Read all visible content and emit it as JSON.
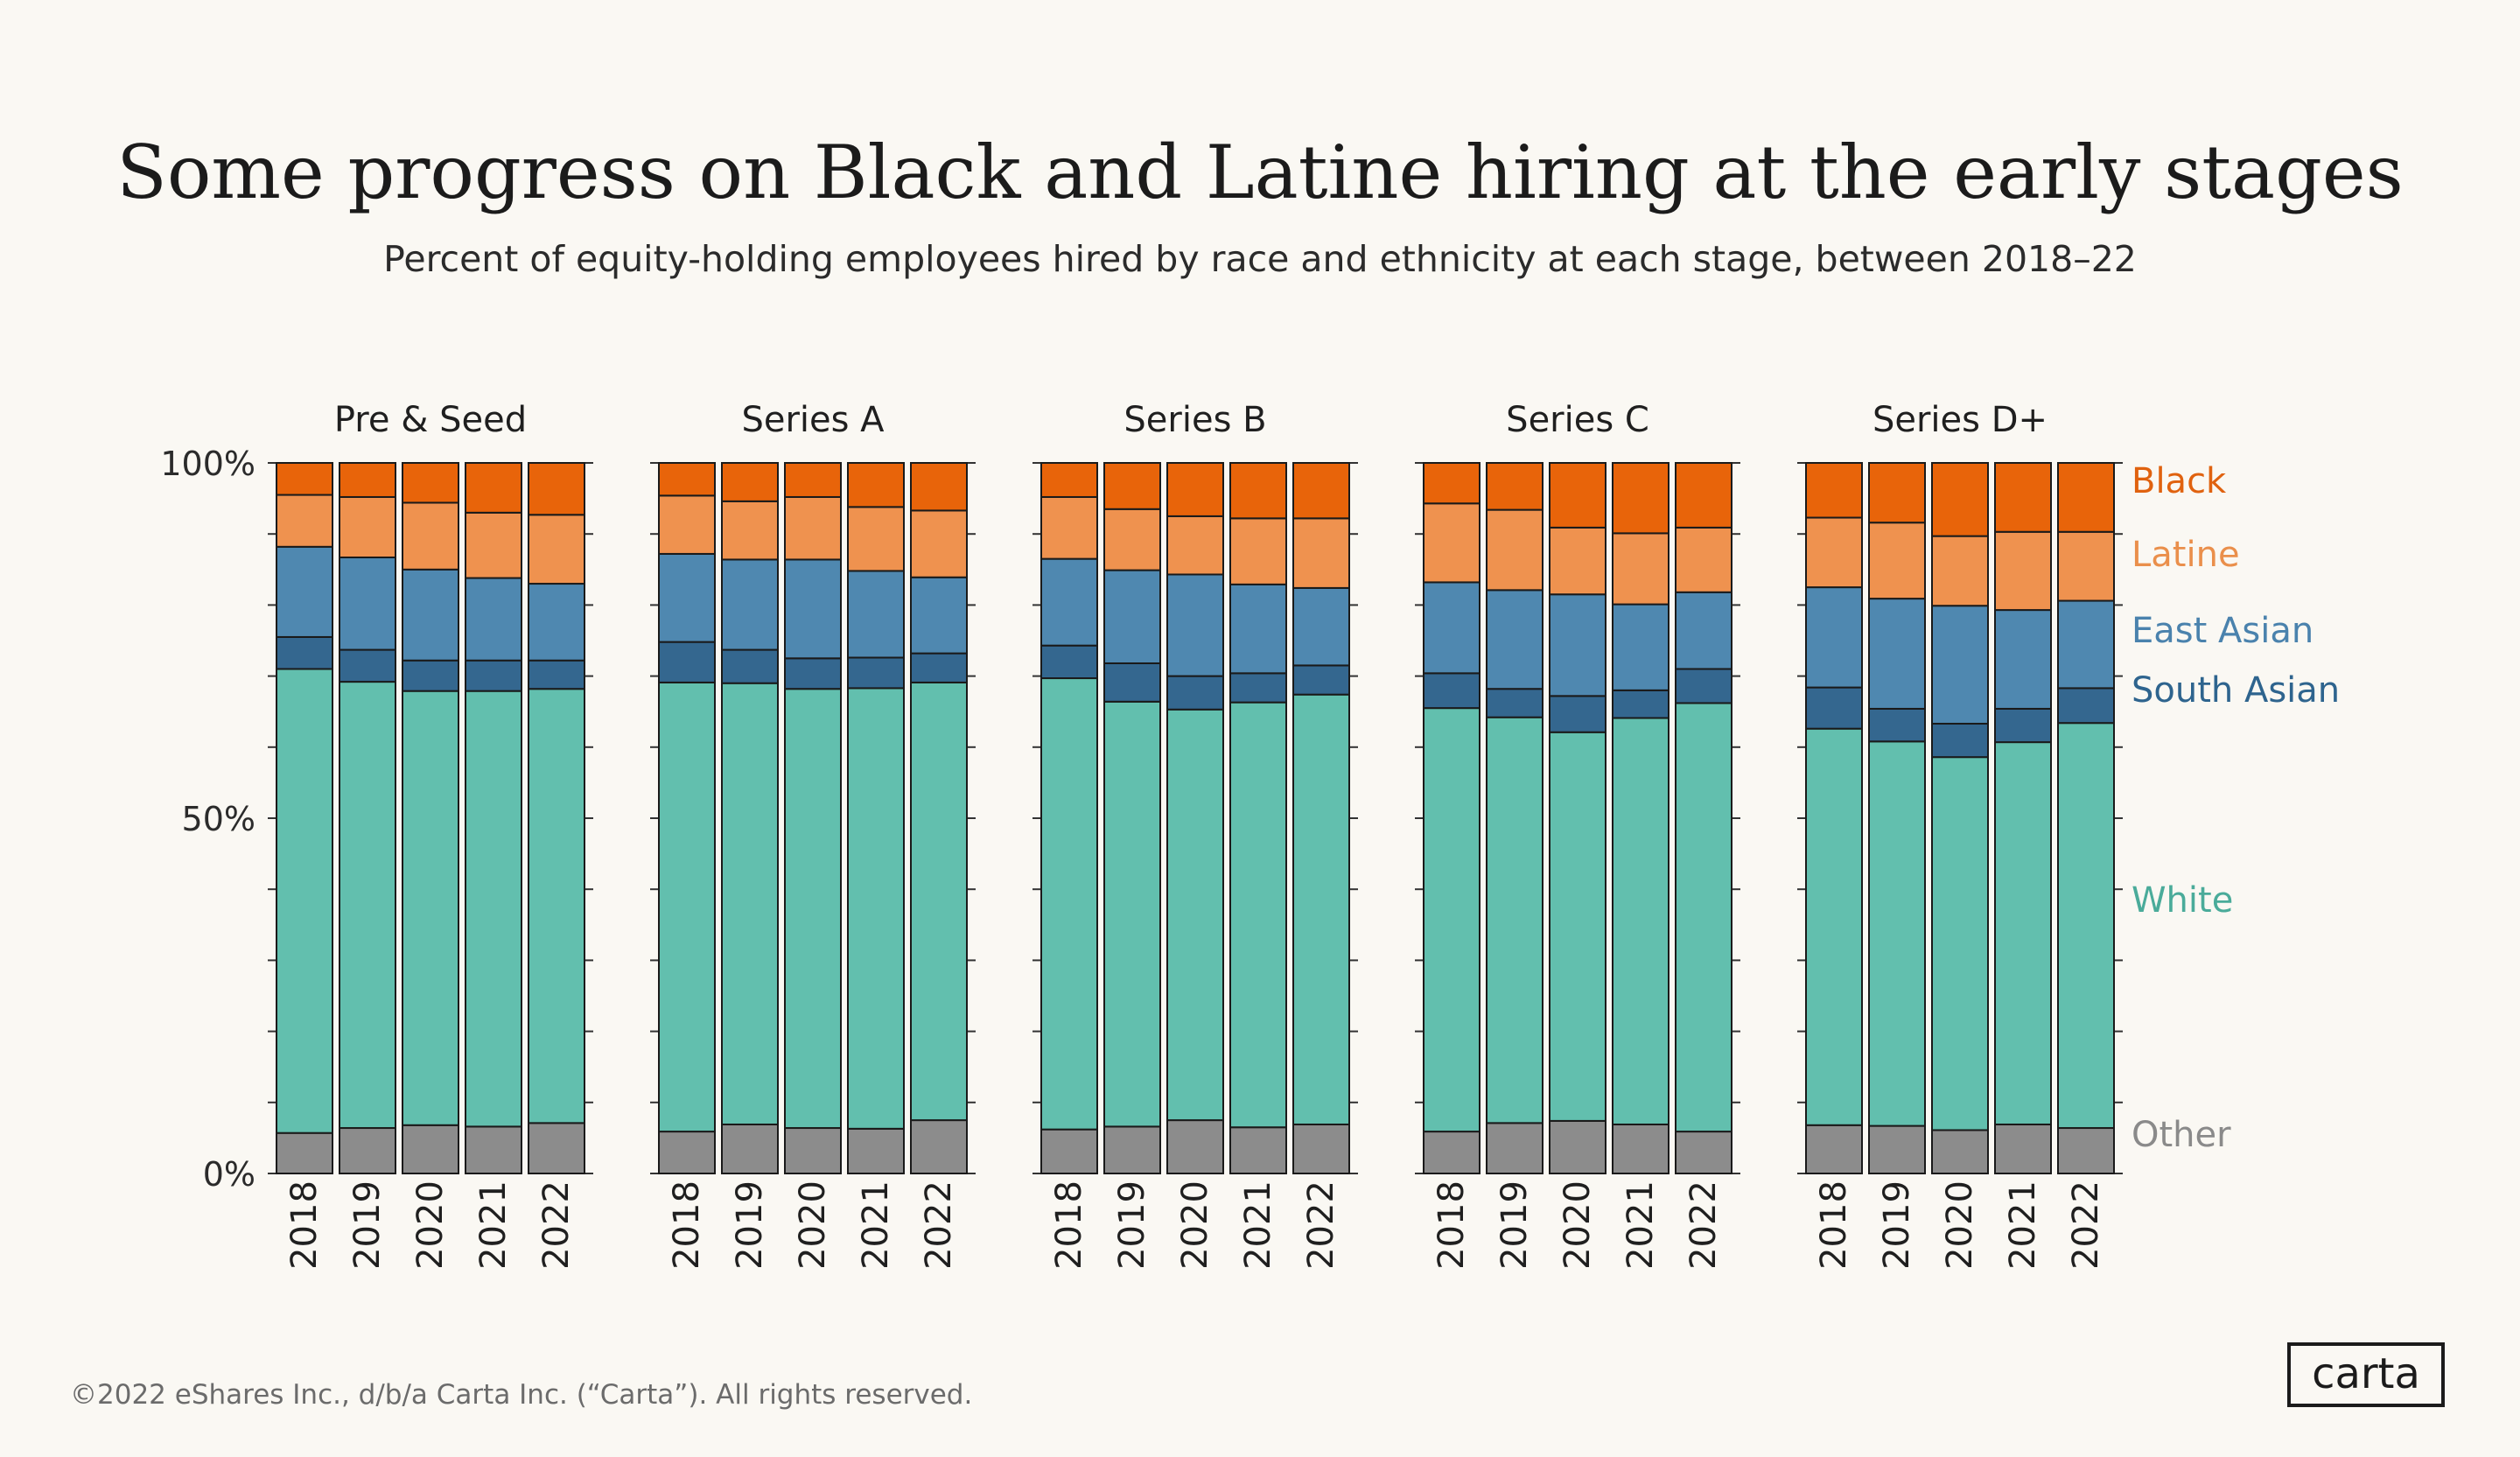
{
  "title": "Some progress on Black and Latine hiring at the early stages",
  "subtitle": "Percent of equity-holding employees hired by race and ethnicity at each stage, between 2018–22",
  "footer": "©2022 eShares Inc., d/b/a Carta Inc. (“Carta”). All rights reserved.",
  "logo_text": "carta",
  "colors": {
    "Other": "#8c8c8c",
    "White": "#62bfae",
    "South Asian": "#34678f",
    "East Asian": "#4f88b0",
    "Latine": "#ef924f",
    "Black": "#e8640a",
    "legend_text": {
      "Black": "#e0620f",
      "Latine": "#ea8f4b",
      "East Asian": "#4a82ad",
      "South Asian": "#2e648e",
      "White": "#4aab9a",
      "Other": "#8a8a8a"
    }
  },
  "chart_data": {
    "type": "bar",
    "stacked": true,
    "normalized": true,
    "y_ticks": [
      "0%",
      "50%",
      "100%"
    ],
    "ylim": [
      0,
      100
    ],
    "categories": [
      "2018",
      "2019",
      "2020",
      "2021",
      "2022"
    ],
    "series_order": [
      "Other",
      "White",
      "South Asian",
      "East Asian",
      "Latine",
      "Black"
    ],
    "legend": [
      "Black",
      "Latine",
      "East Asian",
      "South Asian",
      "White",
      "Other"
    ],
    "panels": [
      {
        "name": "Pre & Seed",
        "values": {
          "Other": [
            5.7,
            6.4,
            6.8,
            6.6,
            7.1
          ],
          "White": [
            65.3,
            62.8,
            61.1,
            61.3,
            61.1
          ],
          "South Asian": [
            4.5,
            4.5,
            4.3,
            4.3,
            4.0
          ],
          "East Asian": [
            12.7,
            13.0,
            12.8,
            11.6,
            10.8
          ],
          "Latine": [
            7.3,
            8.5,
            9.4,
            9.2,
            9.7
          ],
          "Black": [
            4.5,
            4.8,
            5.6,
            7.0,
            7.3
          ]
        }
      },
      {
        "name": "Series A",
        "values": {
          "Other": [
            5.9,
            6.9,
            6.4,
            6.3,
            7.5
          ],
          "White": [
            63.2,
            62.1,
            61.8,
            62.0,
            61.6
          ],
          "South Asian": [
            5.7,
            4.7,
            4.3,
            4.3,
            4.1
          ],
          "East Asian": [
            12.4,
            12.7,
            13.9,
            12.2,
            10.7
          ],
          "Latine": [
            8.2,
            8.2,
            8.8,
            9.0,
            9.4
          ],
          "Black": [
            4.6,
            5.4,
            4.8,
            6.2,
            6.7
          ]
        }
      },
      {
        "name": "Series B",
        "values": {
          "Other": [
            6.2,
            6.6,
            7.5,
            6.5,
            6.9
          ],
          "White": [
            63.5,
            59.8,
            57.8,
            59.8,
            60.5
          ],
          "South Asian": [
            4.6,
            5.4,
            4.7,
            4.1,
            4.1
          ],
          "East Asian": [
            12.2,
            13.1,
            14.3,
            12.5,
            10.9
          ],
          "Latine": [
            8.7,
            8.6,
            8.2,
            9.3,
            9.8
          ],
          "Black": [
            4.8,
            6.5,
            7.5,
            7.8,
            7.8
          ]
        }
      },
      {
        "name": "Series C",
        "values": {
          "Other": [
            5.9,
            7.1,
            7.4,
            6.9,
            5.9
          ],
          "White": [
            59.6,
            57.1,
            54.7,
            57.2,
            60.3
          ],
          "South Asian": [
            4.9,
            4.0,
            5.1,
            3.9,
            4.8
          ],
          "East Asian": [
            12.8,
            13.9,
            14.3,
            12.1,
            10.8
          ],
          "Latine": [
            11.1,
            11.3,
            9.4,
            10.0,
            9.1
          ],
          "Black": [
            5.7,
            6.6,
            9.1,
            9.9,
            9.1
          ]
        }
      },
      {
        "name": "Series  D+",
        "values": {
          "Other": [
            6.8,
            6.7,
            6.1,
            6.9,
            6.4
          ],
          "White": [
            55.8,
            54.1,
            52.5,
            53.8,
            57.0
          ],
          "South Asian": [
            5.8,
            4.6,
            4.7,
            4.7,
            4.9
          ],
          "East Asian": [
            14.1,
            15.5,
            16.6,
            13.9,
            12.3
          ],
          "Latine": [
            9.8,
            10.7,
            9.8,
            11.0,
            9.7
          ],
          "Black": [
            7.7,
            8.4,
            10.3,
            9.7,
            9.7
          ]
        }
      }
    ]
  }
}
